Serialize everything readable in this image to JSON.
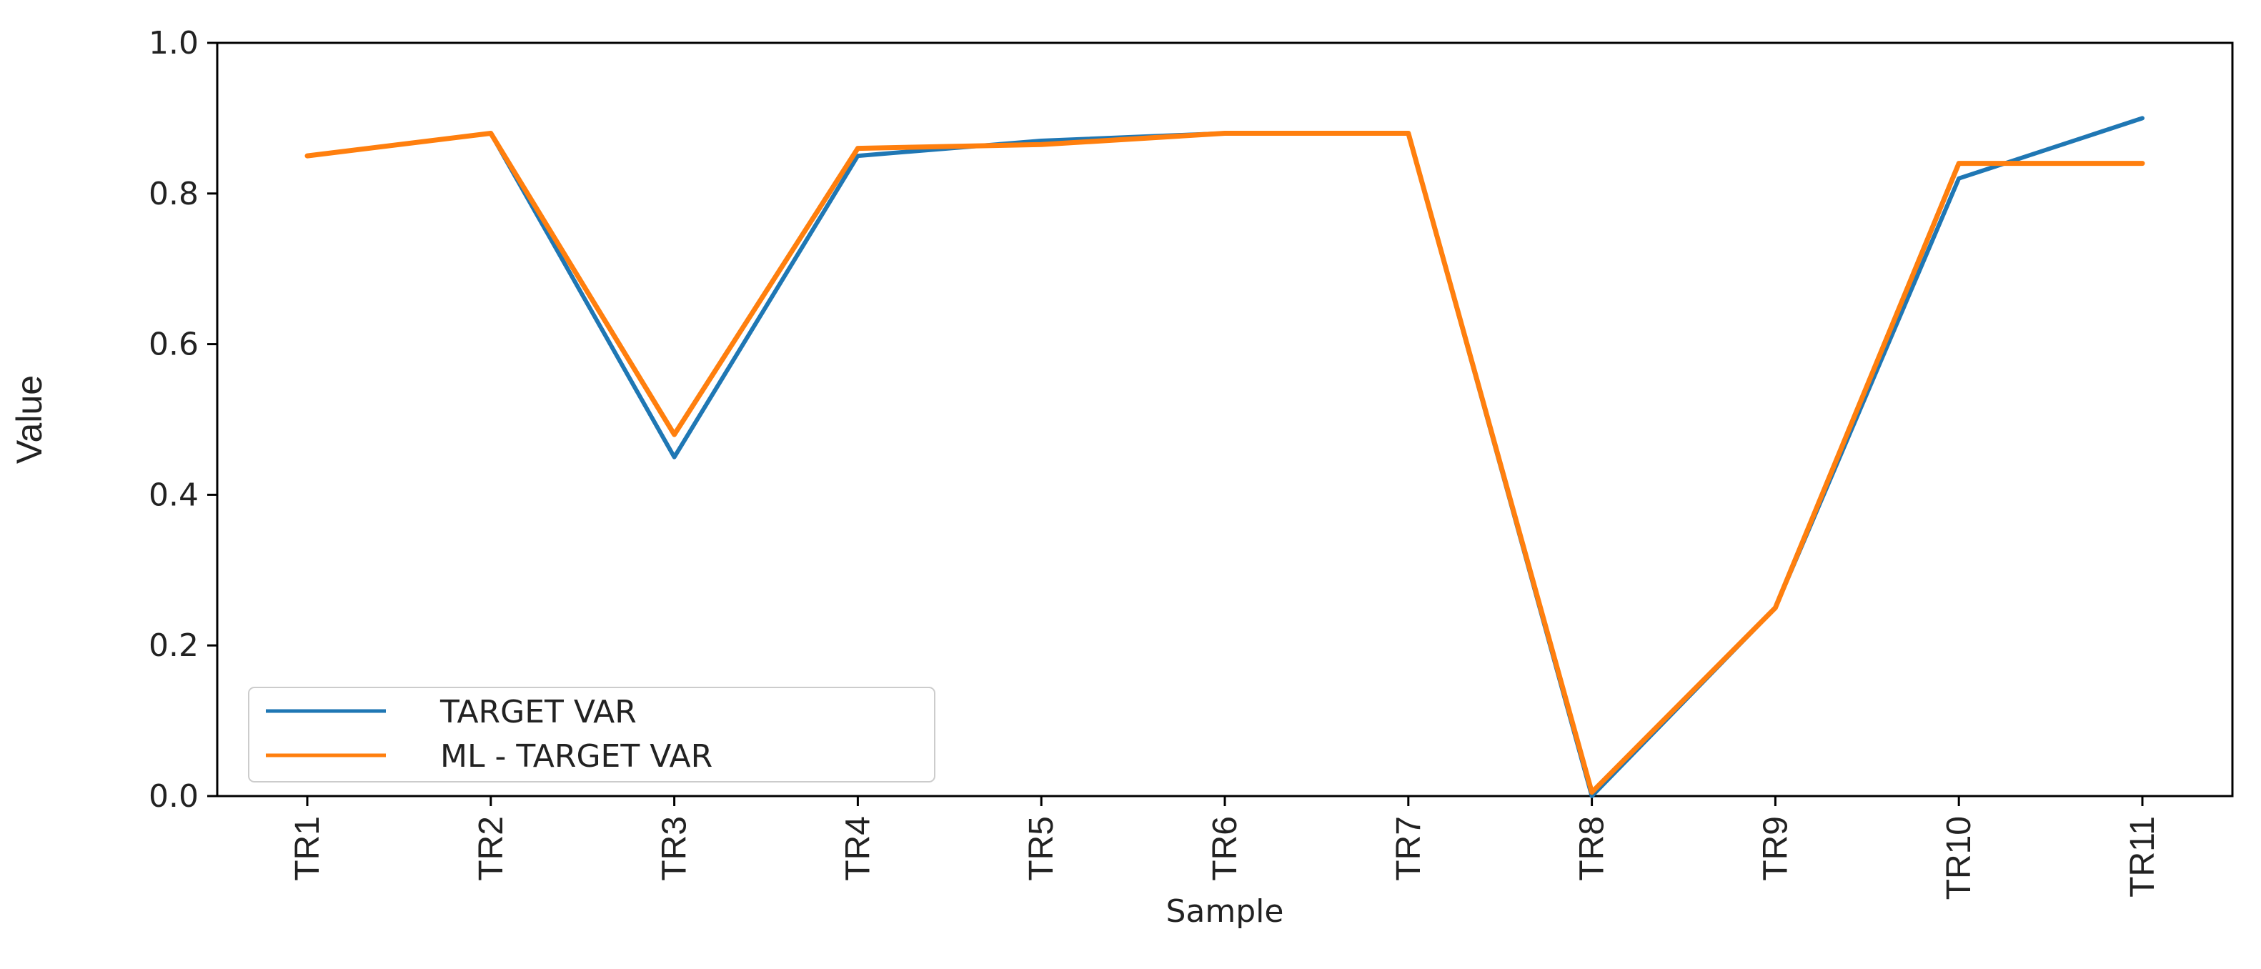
{
  "chart_data": {
    "type": "line",
    "title": "",
    "xlabel": "Sample",
    "ylabel": "Value",
    "categories": [
      "TR1",
      "TR2",
      "TR3",
      "TR4",
      "TR5",
      "TR6",
      "TR7",
      "TR8",
      "TR9",
      "TR10",
      "TR11"
    ],
    "ylim": [
      0.0,
      1.0
    ],
    "yticks": [
      "0.0",
      "0.2",
      "0.4",
      "0.6",
      "0.8",
      "1.0"
    ],
    "grid": false,
    "legend_position": "lower-left",
    "series": [
      {
        "name": "TARGET VAR",
        "color": "#1f77b4",
        "values": [
          0.85,
          0.88,
          0.45,
          0.85,
          0.87,
          0.88,
          0.88,
          0.0,
          0.25,
          0.82,
          0.9
        ]
      },
      {
        "name": "ML - TARGET VAR",
        "color": "#ff7f0e",
        "values": [
          0.85,
          0.88,
          0.48,
          0.86,
          0.865,
          0.88,
          0.88,
          0.005,
          0.25,
          0.84,
          0.84
        ]
      }
    ]
  }
}
